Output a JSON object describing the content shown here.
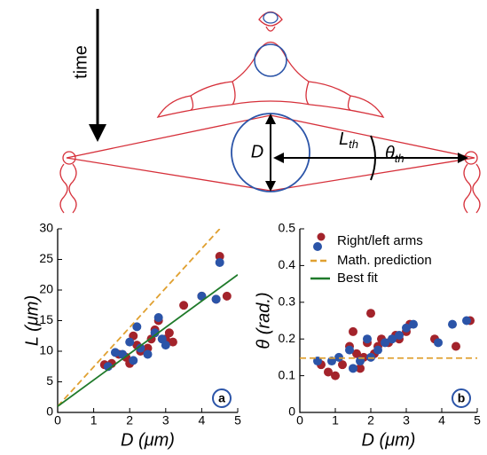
{
  "diagram": {
    "time_label": "time",
    "d_label": "D",
    "l_label": "L",
    "l_sub": "th",
    "theta_label": "θ",
    "theta_sub": "th"
  },
  "chart_data": [
    {
      "type": "scatter",
      "panel": "a",
      "xlabel": "D (μm)",
      "ylabel": "L (μm)",
      "xlim": [
        0,
        5
      ],
      "ylim": [
        0,
        30
      ],
      "xticks": [
        0,
        1,
        2,
        3,
        4,
        5
      ],
      "yticks": [
        0,
        5,
        10,
        15,
        20,
        25,
        30
      ],
      "series": [
        {
          "groups": [
            {
              "color": "#a3232b",
              "x": [
                1.3,
                1.5,
                1.7,
                1.9,
                2.0,
                2.1,
                2.2,
                2.3,
                2.5,
                2.6,
                2.7,
                2.8,
                3.0,
                3.1,
                3.2,
                3.5,
                4.0,
                4.4,
                4.5,
                4.7
              ],
              "y": [
                7.8,
                8,
                9.5,
                9,
                8,
                12.5,
                11,
                10,
                10.5,
                12,
                13.5,
                15,
                12,
                13,
                11.5,
                17.5,
                19,
                18.5,
                25.5,
                19
              ]
            },
            {
              "color": "#2b54a8",
              "x": [
                1.4,
                1.6,
                1.8,
                2.0,
                2.1,
                2.2,
                2.3,
                2.5,
                2.7,
                2.8,
                2.9,
                3.0,
                4.0,
                4.5,
                4.4
              ],
              "y": [
                7.5,
                9.8,
                9.5,
                11.5,
                8.5,
                14,
                10.5,
                9.5,
                13,
                15.5,
                12,
                11,
                19,
                24.5,
                18.5
              ]
            }
          ]
        },
        {
          "color": "#e0a030",
          "style": "dashed",
          "x": [
            0,
            4.5
          ],
          "y": [
            1,
            30
          ]
        },
        {
          "color": "#1f7a2a",
          "style": "solid",
          "x": [
            0,
            5
          ],
          "y": [
            1,
            22.5
          ]
        }
      ]
    },
    {
      "type": "scatter",
      "panel": "b",
      "xlabel": "D (μm)",
      "ylabel": "θ (rad.)",
      "xlim": [
        0,
        5
      ],
      "ylim": [
        0,
        0.5
      ],
      "xticks": [
        0,
        1,
        2,
        3,
        4,
        5
      ],
      "yticks": [
        0,
        0.1,
        0.2,
        0.3,
        0.4,
        0.5
      ],
      "series": [
        {
          "name": "Right/left arms",
          "groups": [
            {
              "color": "#a3232b",
              "x": [
                0.6,
                0.8,
                1.0,
                1.2,
                1.4,
                1.5,
                1.6,
                1.7,
                1.8,
                1.9,
                2.0,
                2.1,
                2.2,
                2.3,
                2.5,
                2.7,
                2.8,
                3.0,
                3.1,
                3.8,
                4.4,
                4.8
              ],
              "y": [
                0.13,
                0.11,
                0.1,
                0.13,
                0.18,
                0.22,
                0.16,
                0.12,
                0.15,
                0.19,
                0.27,
                0.16,
                0.18,
                0.2,
                0.19,
                0.21,
                0.2,
                0.22,
                0.24,
                0.2,
                0.18,
                0.25
              ]
            },
            {
              "color": "#2b54a8",
              "x": [
                0.5,
                0.9,
                1.1,
                1.4,
                1.5,
                1.7,
                1.9,
                2.0,
                2.2,
                2.4,
                2.6,
                2.8,
                3.0,
                3.2,
                3.9,
                4.3,
                4.7
              ],
              "y": [
                0.14,
                0.14,
                0.15,
                0.17,
                0.12,
                0.14,
                0.2,
                0.15,
                0.17,
                0.19,
                0.2,
                0.21,
                0.23,
                0.24,
                0.19,
                0.24,
                0.25
              ]
            }
          ]
        },
        {
          "name": "Math. prediction",
          "color": "#e0a030",
          "style": "dashed",
          "x": [
            0,
            5
          ],
          "y": [
            0.148,
            0.148
          ]
        },
        {
          "name": "Best fit",
          "color": "#1f7a2a",
          "style": "solid"
        }
      ]
    }
  ]
}
